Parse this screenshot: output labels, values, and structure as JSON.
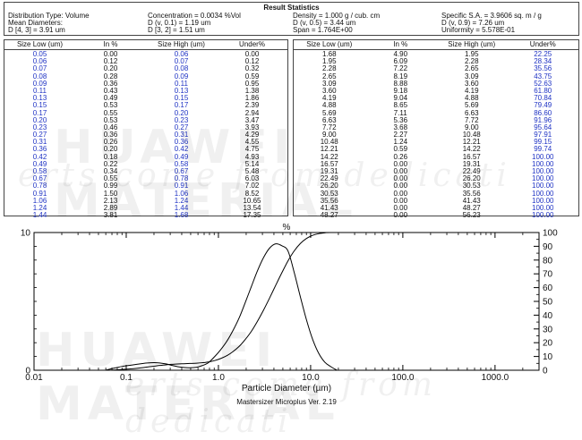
{
  "stats": {
    "title": "Result Statistics",
    "distribution_type": "Distribution Type: Volume",
    "concentration": "Concentration = 0.0034 %Vol",
    "density": "Density = 1.000 g / cub. cm",
    "specific_sa": "Specific S.A. = 3.9606 sq. m / g",
    "mean_diameters": "Mean Diameters:",
    "d_v01": "D (v, 0.1) = 1.19 um",
    "d_v05": "D (v, 0.5) = 3.44 um",
    "d_v09": "D (v, 0.9) = 7.26 um",
    "d43": "D [4, 3] = 3.91 um",
    "d32": "D [3, 2] = 1.51 um",
    "span": "Span = 1.764E+00",
    "uniformity": "Uniformity = 5.578E-01"
  },
  "table_left": {
    "headers": [
      "Size Low (um)",
      "In %",
      "Size High (um)",
      "Under%"
    ],
    "rows": [
      [
        "0.05",
        "0.00",
        "0.06",
        "0.00"
      ],
      [
        "0.06",
        "0.12",
        "0.07",
        "0.12"
      ],
      [
        "0.07",
        "0.20",
        "0.08",
        "0.32"
      ],
      [
        "0.08",
        "0.28",
        "0.09",
        "0.59"
      ],
      [
        "0.09",
        "0.36",
        "0.11",
        "0.95"
      ],
      [
        "0.11",
        "0.43",
        "0.13",
        "1.38"
      ],
      [
        "0.13",
        "0.49",
        "0.15",
        "1.86"
      ],
      [
        "0.15",
        "0.53",
        "0.17",
        "2.39"
      ],
      [
        "0.17",
        "0.55",
        "0.20",
        "2.94"
      ],
      [
        "0.20",
        "0.53",
        "0.23",
        "3.47"
      ],
      [
        "0.23",
        "0.46",
        "0.27",
        "3.93"
      ],
      [
        "0.27",
        "0.36",
        "0.31",
        "4.29"
      ],
      [
        "0.31",
        "0.26",
        "0.36",
        "4.55"
      ],
      [
        "0.36",
        "0.20",
        "0.42",
        "4.75"
      ],
      [
        "0.42",
        "0.18",
        "0.49",
        "4.93"
      ],
      [
        "0.49",
        "0.22",
        "0.58",
        "5.14"
      ],
      [
        "0.58",
        "0.34",
        "0.67",
        "5.48"
      ],
      [
        "0.67",
        "0.55",
        "0.78",
        "6.03"
      ],
      [
        "0.78",
        "0.99",
        "0.91",
        "7.02"
      ],
      [
        "0.91",
        "1.50",
        "1.06",
        "8.52"
      ],
      [
        "1.06",
        "2.13",
        "1.24",
        "10.65"
      ],
      [
        "1.24",
        "2.89",
        "1.44",
        "13.54"
      ],
      [
        "1.44",
        "3.81",
        "1.68",
        "17.35"
      ]
    ]
  },
  "table_right": {
    "headers": [
      "Size Low (um)",
      "In %",
      "Size High (um)",
      "Under%"
    ],
    "rows": [
      [
        "1.68",
        "4.90",
        "1.95",
        "22.25"
      ],
      [
        "1.95",
        "6.09",
        "2.28",
        "28.34"
      ],
      [
        "2.28",
        "7.22",
        "2.65",
        "35.56"
      ],
      [
        "2.65",
        "8.19",
        "3.09",
        "43.75"
      ],
      [
        "3.09",
        "8.88",
        "3.60",
        "52.63"
      ],
      [
        "3.60",
        "9.18",
        "4.19",
        "61.80"
      ],
      [
        "4.19",
        "9.04",
        "4.88",
        "70.84"
      ],
      [
        "4.88",
        "8.65",
        "5.69",
        "79.49"
      ],
      [
        "5.69",
        "7.11",
        "6.63",
        "86.60"
      ],
      [
        "6.63",
        "5.36",
        "7.72",
        "91.96"
      ],
      [
        "7.72",
        "3.68",
        "9.00",
        "95.64"
      ],
      [
        "9.00",
        "2.27",
        "10.48",
        "97.91"
      ],
      [
        "10.48",
        "1.24",
        "12.21",
        "99.15"
      ],
      [
        "12.21",
        "0.59",
        "14.22",
        "99.74"
      ],
      [
        "14.22",
        "0.26",
        "16.57",
        "100.00"
      ],
      [
        "16.57",
        "0.00",
        "19.31",
        "100.00"
      ],
      [
        "19.31",
        "0.00",
        "22.49",
        "100.00"
      ],
      [
        "22.49",
        "0.00",
        "26.20",
        "100.00"
      ],
      [
        "26.20",
        "0.00",
        "30.53",
        "100.00"
      ],
      [
        "30.53",
        "0.00",
        "35.56",
        "100.00"
      ],
      [
        "35.56",
        "0.00",
        "41.43",
        "100.00"
      ],
      [
        "41.43",
        "0.00",
        "48.27",
        "100.00"
      ],
      [
        "48.27",
        "0.00",
        "56.23",
        "100.00"
      ]
    ]
  },
  "colors": {
    "blue": "#1f33c4",
    "text": "#111111",
    "line": "#000000"
  },
  "watermark": {
    "line1": "HUAWEI MATERIAL",
    "line2": "erts come from dedicati"
  },
  "chart_data": {
    "type": "line",
    "title": "%",
    "xlabel": "Particle Diameter (µm)",
    "footer": "Mastersizer Microplus Ver. 2.19",
    "x_scale": "log",
    "xlim": [
      0.01,
      3000
    ],
    "ylim_left": [
      0,
      10
    ],
    "ylim_right": [
      0,
      100
    ],
    "x_ticks": [
      0.01,
      0.1,
      1.0,
      10.0,
      100.0,
      1000.0
    ],
    "x_tick_labels": [
      "0.01",
      "0.1",
      "1.0",
      "10.0",
      "100.0",
      "1000.0"
    ],
    "y_left_ticks": [
      0,
      10
    ],
    "y_right_ticks": [
      0,
      10,
      20,
      30,
      40,
      50,
      60,
      70,
      80,
      90,
      100
    ],
    "series": [
      {
        "name": "In %",
        "axis": "left",
        "x": [
          0.06,
          0.07,
          0.08,
          0.09,
          0.11,
          0.13,
          0.15,
          0.17,
          0.2,
          0.23,
          0.27,
          0.31,
          0.36,
          0.42,
          0.49,
          0.58,
          0.67,
          0.78,
          0.91,
          1.06,
          1.24,
          1.44,
          1.68,
          1.95,
          2.28,
          2.65,
          3.09,
          3.6,
          4.19,
          4.88,
          5.69,
          6.63,
          7.72,
          9.0,
          10.48,
          12.21,
          14.22,
          16.57,
          19.31
        ],
        "y": [
          0.0,
          0.12,
          0.2,
          0.28,
          0.36,
          0.43,
          0.49,
          0.53,
          0.55,
          0.53,
          0.46,
          0.36,
          0.26,
          0.2,
          0.18,
          0.22,
          0.34,
          0.55,
          0.99,
          1.5,
          2.13,
          2.89,
          3.81,
          4.9,
          6.09,
          7.22,
          8.19,
          8.88,
          9.18,
          9.04,
          8.65,
          7.11,
          5.36,
          3.68,
          2.27,
          1.24,
          0.59,
          0.26,
          0.0
        ]
      },
      {
        "name": "Under%",
        "axis": "right",
        "x": [
          0.06,
          0.07,
          0.08,
          0.09,
          0.11,
          0.13,
          0.15,
          0.17,
          0.2,
          0.23,
          0.27,
          0.31,
          0.36,
          0.42,
          0.49,
          0.58,
          0.67,
          0.78,
          0.91,
          1.06,
          1.24,
          1.44,
          1.68,
          1.95,
          2.28,
          2.65,
          3.09,
          3.6,
          4.19,
          4.88,
          5.69,
          6.63,
          7.72,
          9.0,
          10.48,
          12.21,
          14.22,
          16.57,
          56.23,
          3000
        ],
        "y": [
          0.0,
          0.12,
          0.32,
          0.59,
          0.95,
          1.38,
          1.86,
          2.39,
          2.94,
          3.47,
          3.93,
          4.29,
          4.55,
          4.75,
          4.93,
          5.14,
          5.48,
          6.03,
          7.02,
          8.52,
          10.65,
          13.54,
          17.35,
          22.25,
          28.34,
          35.56,
          43.75,
          52.63,
          61.8,
          70.84,
          79.49,
          86.6,
          91.96,
          95.64,
          97.91,
          99.15,
          99.74,
          100.0,
          100.0,
          100.0
        ]
      }
    ]
  }
}
